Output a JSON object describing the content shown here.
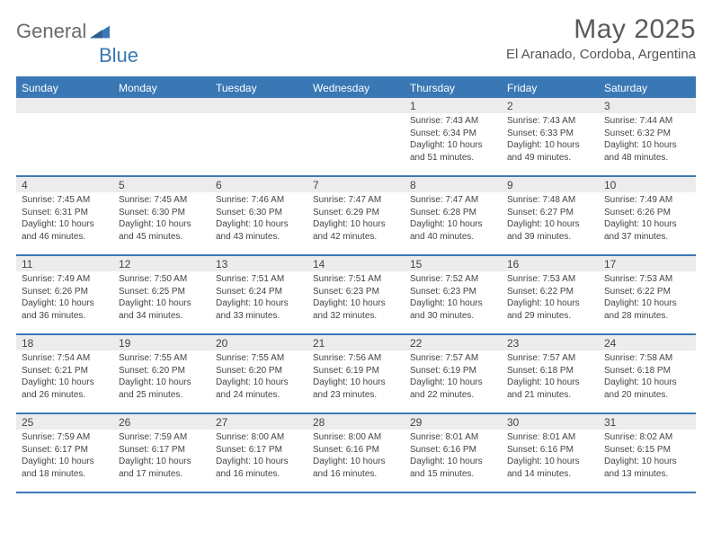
{
  "brand": {
    "word1": "General",
    "word2": "Blue",
    "color_gray": "#6a6a6a",
    "color_blue": "#3a78b5"
  },
  "title": "May 2025",
  "location": "El Aranado, Cordoba, Argentina",
  "day_names": [
    "Sunday",
    "Monday",
    "Tuesday",
    "Wednesday",
    "Thursday",
    "Friday",
    "Saturday"
  ],
  "colors": {
    "header_bg": "#3a78b5",
    "daynum_bg": "#ececec",
    "rule": "#3a78b5",
    "text": "#444"
  },
  "weeks": [
    [
      {
        "n": "",
        "sr": "",
        "ss": "",
        "dl": ""
      },
      {
        "n": "",
        "sr": "",
        "ss": "",
        "dl": ""
      },
      {
        "n": "",
        "sr": "",
        "ss": "",
        "dl": ""
      },
      {
        "n": "",
        "sr": "",
        "ss": "",
        "dl": ""
      },
      {
        "n": "1",
        "sr": "7:43 AM",
        "ss": "6:34 PM",
        "dl": "10 hours and 51 minutes."
      },
      {
        "n": "2",
        "sr": "7:43 AM",
        "ss": "6:33 PM",
        "dl": "10 hours and 49 minutes."
      },
      {
        "n": "3",
        "sr": "7:44 AM",
        "ss": "6:32 PM",
        "dl": "10 hours and 48 minutes."
      }
    ],
    [
      {
        "n": "4",
        "sr": "7:45 AM",
        "ss": "6:31 PM",
        "dl": "10 hours and 46 minutes."
      },
      {
        "n": "5",
        "sr": "7:45 AM",
        "ss": "6:30 PM",
        "dl": "10 hours and 45 minutes."
      },
      {
        "n": "6",
        "sr": "7:46 AM",
        "ss": "6:30 PM",
        "dl": "10 hours and 43 minutes."
      },
      {
        "n": "7",
        "sr": "7:47 AM",
        "ss": "6:29 PM",
        "dl": "10 hours and 42 minutes."
      },
      {
        "n": "8",
        "sr": "7:47 AM",
        "ss": "6:28 PM",
        "dl": "10 hours and 40 minutes."
      },
      {
        "n": "9",
        "sr": "7:48 AM",
        "ss": "6:27 PM",
        "dl": "10 hours and 39 minutes."
      },
      {
        "n": "10",
        "sr": "7:49 AM",
        "ss": "6:26 PM",
        "dl": "10 hours and 37 minutes."
      }
    ],
    [
      {
        "n": "11",
        "sr": "7:49 AM",
        "ss": "6:26 PM",
        "dl": "10 hours and 36 minutes."
      },
      {
        "n": "12",
        "sr": "7:50 AM",
        "ss": "6:25 PM",
        "dl": "10 hours and 34 minutes."
      },
      {
        "n": "13",
        "sr": "7:51 AM",
        "ss": "6:24 PM",
        "dl": "10 hours and 33 minutes."
      },
      {
        "n": "14",
        "sr": "7:51 AM",
        "ss": "6:23 PM",
        "dl": "10 hours and 32 minutes."
      },
      {
        "n": "15",
        "sr": "7:52 AM",
        "ss": "6:23 PM",
        "dl": "10 hours and 30 minutes."
      },
      {
        "n": "16",
        "sr": "7:53 AM",
        "ss": "6:22 PM",
        "dl": "10 hours and 29 minutes."
      },
      {
        "n": "17",
        "sr": "7:53 AM",
        "ss": "6:22 PM",
        "dl": "10 hours and 28 minutes."
      }
    ],
    [
      {
        "n": "18",
        "sr": "7:54 AM",
        "ss": "6:21 PM",
        "dl": "10 hours and 26 minutes."
      },
      {
        "n": "19",
        "sr": "7:55 AM",
        "ss": "6:20 PM",
        "dl": "10 hours and 25 minutes."
      },
      {
        "n": "20",
        "sr": "7:55 AM",
        "ss": "6:20 PM",
        "dl": "10 hours and 24 minutes."
      },
      {
        "n": "21",
        "sr": "7:56 AM",
        "ss": "6:19 PM",
        "dl": "10 hours and 23 minutes."
      },
      {
        "n": "22",
        "sr": "7:57 AM",
        "ss": "6:19 PM",
        "dl": "10 hours and 22 minutes."
      },
      {
        "n": "23",
        "sr": "7:57 AM",
        "ss": "6:18 PM",
        "dl": "10 hours and 21 minutes."
      },
      {
        "n": "24",
        "sr": "7:58 AM",
        "ss": "6:18 PM",
        "dl": "10 hours and 20 minutes."
      }
    ],
    [
      {
        "n": "25",
        "sr": "7:59 AM",
        "ss": "6:17 PM",
        "dl": "10 hours and 18 minutes."
      },
      {
        "n": "26",
        "sr": "7:59 AM",
        "ss": "6:17 PM",
        "dl": "10 hours and 17 minutes."
      },
      {
        "n": "27",
        "sr": "8:00 AM",
        "ss": "6:17 PM",
        "dl": "10 hours and 16 minutes."
      },
      {
        "n": "28",
        "sr": "8:00 AM",
        "ss": "6:16 PM",
        "dl": "10 hours and 16 minutes."
      },
      {
        "n": "29",
        "sr": "8:01 AM",
        "ss": "6:16 PM",
        "dl": "10 hours and 15 minutes."
      },
      {
        "n": "30",
        "sr": "8:01 AM",
        "ss": "6:16 PM",
        "dl": "10 hours and 14 minutes."
      },
      {
        "n": "31",
        "sr": "8:02 AM",
        "ss": "6:15 PM",
        "dl": "10 hours and 13 minutes."
      }
    ]
  ],
  "labels": {
    "sunrise": "Sunrise: ",
    "sunset": "Sunset: ",
    "daylight": "Daylight: "
  }
}
